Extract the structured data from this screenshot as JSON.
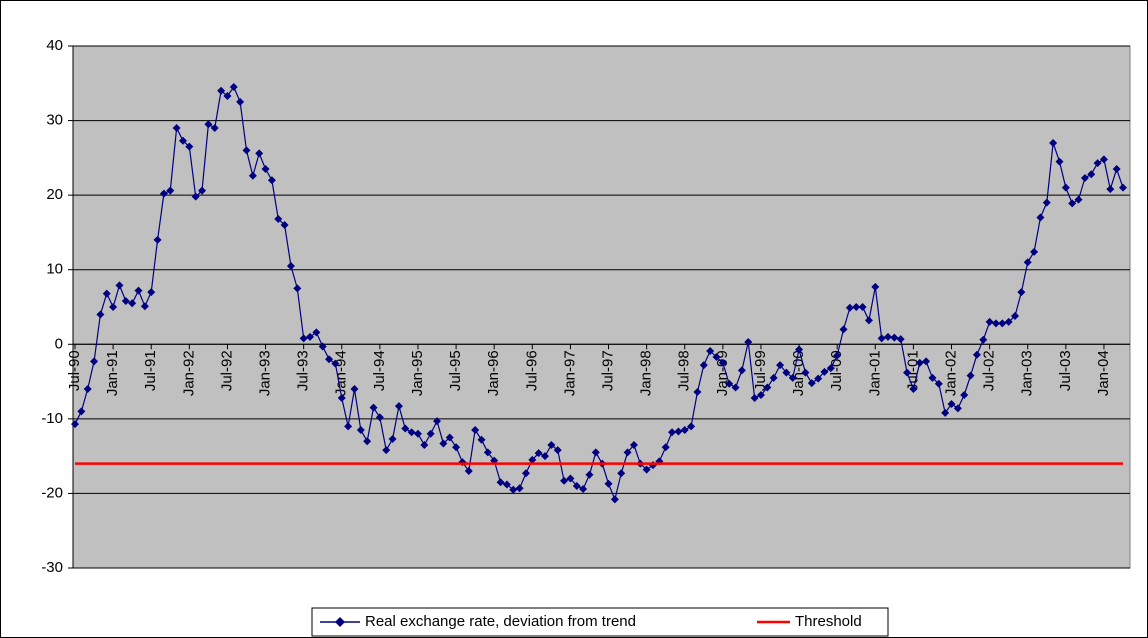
{
  "chart_data": {
    "type": "line",
    "categories": [
      "Jul-90",
      null,
      null,
      null,
      null,
      null,
      "Jan-91",
      null,
      null,
      null,
      null,
      null,
      "Jul-91",
      null,
      null,
      null,
      null,
      null,
      "Jan-92",
      null,
      null,
      null,
      null,
      null,
      "Jul-92",
      null,
      null,
      null,
      null,
      null,
      "Jan-93",
      null,
      null,
      null,
      null,
      null,
      "Jul-93",
      null,
      null,
      null,
      null,
      null,
      "Jan-94",
      null,
      null,
      null,
      null,
      null,
      "Jul-94",
      null,
      null,
      null,
      null,
      null,
      "Jan-95",
      null,
      null,
      null,
      null,
      null,
      "Jul-95",
      null,
      null,
      null,
      null,
      null,
      "Jan-96",
      null,
      null,
      null,
      null,
      null,
      "Jul-96",
      null,
      null,
      null,
      null,
      null,
      "Jan-97",
      null,
      null,
      null,
      null,
      null,
      "Jul-97",
      null,
      null,
      null,
      null,
      null,
      "Jan-98",
      null,
      null,
      null,
      null,
      null,
      "Jul-98",
      null,
      null,
      null,
      null,
      null,
      "Jan-99",
      null,
      null,
      null,
      null,
      null,
      "Jul-99",
      null,
      null,
      null,
      null,
      null,
      "Jan-00",
      null,
      null,
      null,
      null,
      null,
      "Jul-00",
      null,
      null,
      null,
      null,
      null,
      "Jan-01",
      null,
      null,
      null,
      null,
      null,
      "Jul-01",
      null,
      null,
      null,
      null,
      null,
      "Jan-02",
      null,
      null,
      null,
      null,
      null,
      "Jul-02",
      null,
      null,
      null,
      null,
      null,
      "Jan-03",
      null,
      null,
      null,
      null,
      null,
      "Jul-03",
      null,
      null,
      null,
      null,
      null,
      "Jan-04",
      null,
      null,
      null
    ],
    "series": [
      {
        "name": "Real exchange rate, deviation from trend",
        "color": "#000080",
        "marker": "diamond",
        "values": [
          -10.7,
          -9,
          -6,
          -2.3,
          4,
          6.8,
          5,
          7.9,
          5.8,
          5.5,
          7.2,
          5.1,
          7,
          14,
          20.2,
          20.6,
          29,
          27.3,
          26.5,
          19.8,
          20.6,
          29.5,
          29,
          34,
          33.3,
          34.5,
          32.5,
          26,
          22.6,
          25.6,
          23.5,
          22,
          16.8,
          16,
          10.5,
          7.5,
          0.8,
          1,
          1.6,
          -0.3,
          -2,
          -2.6,
          -7.2,
          -11,
          -6,
          -11.5,
          -13,
          -8.5,
          -9.8,
          -14.2,
          -12.7,
          -8.3,
          -11.3,
          -11.8,
          -12,
          -13.5,
          -12,
          -10.3,
          -13.3,
          -12.5,
          -13.8,
          -15.8,
          -17,
          -11.5,
          -12.8,
          -14.5,
          -15.6,
          -18.5,
          -18.8,
          -19.5,
          -19.3,
          -17.3,
          -15.5,
          -14.6,
          -15,
          -13.5,
          -14.2,
          -18.3,
          -18,
          -19,
          -19.4,
          -17.5,
          -14.5,
          -16,
          -18.7,
          -20.8,
          -17.3,
          -14.5,
          -13.5,
          -16,
          -16.8,
          -16.2,
          -15.7,
          -13.8,
          -11.8,
          -11.7,
          -11.5,
          -11,
          -6.4,
          -2.8,
          -0.9,
          -1.7,
          -2.5,
          -5.3,
          -5.8,
          -3.5,
          0.3,
          -7.2,
          -6.8,
          -5.8,
          -4.5,
          -2.8,
          -3.8,
          -4.5,
          -0.7,
          -3.8,
          -5.2,
          -4.6,
          -3.7,
          -3.2,
          -1.5,
          2,
          4.9,
          5,
          5,
          3.2,
          7.7,
          0.8,
          1,
          0.9,
          0.7,
          -3.8,
          -6,
          -2.5,
          -2.3,
          -4.5,
          -5.3,
          -9.2,
          -8,
          -8.6,
          -6.8,
          -4.2,
          -1.4,
          0.6,
          3,
          2.8,
          2.8,
          3,
          3.8,
          7,
          11,
          12.4,
          17,
          19,
          27,
          24.5,
          21,
          18.9,
          19.4,
          22.3,
          22.8,
          24.3,
          24.8,
          20.8,
          23.5,
          21
        ]
      },
      {
        "name": "Threshold",
        "color": "#ff0000",
        "marker": "none",
        "values": [
          -16,
          -16,
          -16,
          -16,
          -16,
          -16,
          -16,
          -16,
          -16,
          -16,
          -16,
          -16,
          -16,
          -16,
          -16,
          -16,
          -16,
          -16,
          -16,
          -16,
          -16,
          -16,
          -16,
          -16,
          -16,
          -16,
          -16,
          -16,
          -16,
          -16,
          -16,
          -16,
          -16,
          -16,
          -16,
          -16,
          -16,
          -16,
          -16,
          -16,
          -16,
          -16,
          -16,
          -16,
          -16,
          -16,
          -16,
          -16,
          -16,
          -16,
          -16,
          -16,
          -16,
          -16,
          -16,
          -16,
          -16,
          -16,
          -16,
          -16,
          -16,
          -16,
          -16,
          -16,
          -16,
          -16,
          -16,
          -16,
          -16,
          -16,
          -16,
          -16,
          -16,
          -16,
          -16,
          -16,
          -16,
          -16,
          -16,
          -16,
          -16,
          -16,
          -16,
          -16,
          -16,
          -16,
          -16,
          -16,
          -16,
          -16,
          -16,
          -16,
          -16,
          -16,
          -16,
          -16,
          -16,
          -16,
          -16,
          -16,
          -16,
          -16,
          -16,
          -16,
          -16,
          -16,
          -16,
          -16,
          -16,
          -16,
          -16,
          -16,
          -16,
          -16,
          -16,
          -16,
          -16,
          -16,
          -16,
          -16,
          -16,
          -16,
          -16,
          -16,
          -16,
          -16,
          -16,
          -16,
          -16,
          -16,
          -16,
          -16,
          -16,
          -16,
          -16,
          -16,
          -16,
          -16,
          -16,
          -16,
          -16,
          -16,
          -16,
          -16,
          -16,
          -16,
          -16,
          -16,
          -16,
          -16,
          -16,
          -16,
          -16,
          -16,
          -16,
          -16,
          -16,
          -16,
          -16,
          -16,
          -16,
          -16,
          -16,
          -16,
          -16,
          -16
        ]
      }
    ],
    "ylim": [
      -30,
      40
    ],
    "yticks": [
      -30,
      -20,
      -10,
      0,
      10,
      20,
      30,
      40
    ],
    "grid": true,
    "legend": "bottom"
  }
}
